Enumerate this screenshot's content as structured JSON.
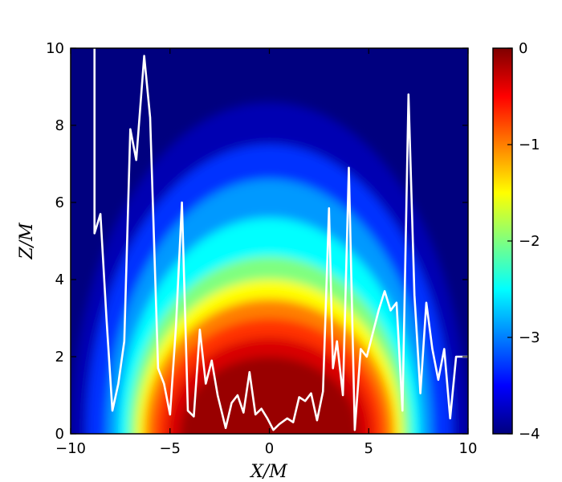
{
  "chart_data": {
    "type": "heatmap",
    "title": "",
    "xlabel": "X/M",
    "ylabel": "Z/M",
    "xlim": [
      -10,
      10
    ],
    "ylim": [
      0,
      10
    ],
    "x_ticks": [
      -10,
      -5,
      0,
      5,
      10
    ],
    "y_ticks": [
      0,
      2,
      4,
      6,
      8,
      10
    ],
    "x_tick_labels": [
      "−10",
      "−5",
      "0",
      "5",
      "10"
    ],
    "y_tick_labels": [
      "0",
      "2",
      "4",
      "6",
      "8",
      "10"
    ],
    "colorbar": {
      "colormap": "jet",
      "range": [
        -4,
        0
      ],
      "ticks": [
        0,
        -1,
        -2,
        -3,
        -4
      ],
      "tick_labels": [
        "0",
        "−1",
        "−2",
        "−3",
        "−4"
      ]
    },
    "colormap_stops": [
      "#00007f",
      "#0000ff",
      "#007fff",
      "#00ffff",
      "#7fff7f",
      "#ffff00",
      "#ff7f00",
      "#ff0000",
      "#7f0000"
    ],
    "heatmap_levels": [
      {
        "half_width": 10.0,
        "height": 8.6,
        "level": -3.8
      },
      {
        "half_width": 9.2,
        "height": 7.5,
        "level": -3.3
      },
      {
        "half_width": 8.2,
        "height": 6.6,
        "level": -2.9
      },
      {
        "half_width": 7.6,
        "height": 5.6,
        "level": -2.5
      },
      {
        "half_width": 7.1,
        "height": 4.6,
        "level": -2.0
      },
      {
        "half_width": 6.7,
        "height": 4.0,
        "level": -1.5
      },
      {
        "half_width": 6.3,
        "height": 3.5,
        "level": -1.0
      },
      {
        "half_width": 5.8,
        "height": 3.0,
        "level": -0.7
      },
      {
        "half_width": 5.2,
        "height": 2.5,
        "level": -0.35
      },
      {
        "half_width": 4.5,
        "height": 2.0,
        "level": -0.1
      }
    ],
    "line_color": "#ffffff",
    "line_series": {
      "x": [
        -8.8,
        -8.8,
        -8.5,
        -8.2,
        -7.9,
        -7.6,
        -7.3,
        -7.0,
        -6.7,
        -6.3,
        -6.0,
        -5.6,
        -5.3,
        -5.0,
        -4.7,
        -4.4,
        -4.1,
        -3.8,
        -3.5,
        -3.2,
        -2.9,
        -2.6,
        -2.2,
        -1.9,
        -1.6,
        -1.3,
        -1.0,
        -0.7,
        -0.4,
        -0.1,
        0.2,
        0.5,
        0.9,
        1.2,
        1.5,
        1.8,
        2.1,
        2.4,
        2.7,
        3.0,
        3.2,
        3.4,
        3.7,
        4.0,
        4.3,
        4.6,
        4.9,
        5.2,
        5.5,
        5.8,
        6.1,
        6.4,
        6.7,
        7.0,
        7.3,
        7.6,
        7.9,
        8.2,
        8.5,
        8.8,
        9.1,
        9.4,
        9.7,
        10.0
      ],
      "y": [
        10.0,
        5.2,
        5.7,
        3.0,
        0.6,
        1.3,
        2.4,
        7.9,
        7.1,
        9.8,
        8.2,
        1.7,
        1.3,
        0.5,
        2.8,
        6.0,
        0.6,
        0.45,
        2.7,
        1.3,
        1.9,
        1.0,
        0.15,
        0.8,
        1.0,
        0.55,
        1.6,
        0.5,
        0.65,
        0.4,
        0.1,
        0.25,
        0.4,
        0.3,
        0.95,
        0.85,
        1.05,
        0.35,
        1.1,
        5.85,
        1.7,
        2.4,
        1.0,
        6.9,
        0.1,
        2.2,
        2.0,
        2.6,
        3.2,
        3.7,
        3.2,
        3.4,
        0.6,
        8.8,
        3.6,
        1.05,
        3.4,
        2.2,
        1.4,
        2.2,
        0.4,
        2.0,
        2.0,
        2.0
      ]
    }
  }
}
